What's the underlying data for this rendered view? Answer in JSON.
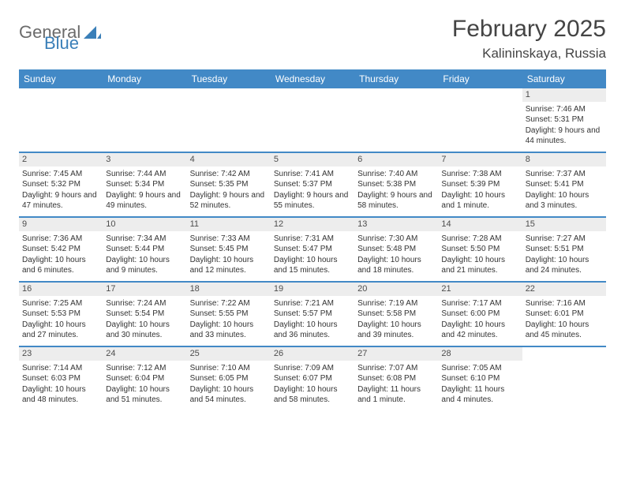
{
  "logo": {
    "general": "General",
    "blue": "Blue"
  },
  "title": "February 2025",
  "location": "Kalininskaya, Russia",
  "day_headers": [
    "Sunday",
    "Monday",
    "Tuesday",
    "Wednesday",
    "Thursday",
    "Friday",
    "Saturday"
  ],
  "colors": {
    "header_bar": "#4289c6",
    "day_num_bg": "#ededed",
    "divider": "#4289c6",
    "logo_gray": "#6b6b6b",
    "logo_blue": "#3a7fb8"
  },
  "weeks": [
    [
      {
        "n": "",
        "empty": true
      },
      {
        "n": "",
        "empty": true
      },
      {
        "n": "",
        "empty": true
      },
      {
        "n": "",
        "empty": true
      },
      {
        "n": "",
        "empty": true
      },
      {
        "n": "",
        "empty": true
      },
      {
        "n": "1",
        "sr": "Sunrise: 7:46 AM",
        "ss": "Sunset: 5:31 PM",
        "dl": "Daylight: 9 hours and 44 minutes."
      }
    ],
    [
      {
        "n": "2",
        "sr": "Sunrise: 7:45 AM",
        "ss": "Sunset: 5:32 PM",
        "dl": "Daylight: 9 hours and 47 minutes."
      },
      {
        "n": "3",
        "sr": "Sunrise: 7:44 AM",
        "ss": "Sunset: 5:34 PM",
        "dl": "Daylight: 9 hours and 49 minutes."
      },
      {
        "n": "4",
        "sr": "Sunrise: 7:42 AM",
        "ss": "Sunset: 5:35 PM",
        "dl": "Daylight: 9 hours and 52 minutes."
      },
      {
        "n": "5",
        "sr": "Sunrise: 7:41 AM",
        "ss": "Sunset: 5:37 PM",
        "dl": "Daylight: 9 hours and 55 minutes."
      },
      {
        "n": "6",
        "sr": "Sunrise: 7:40 AM",
        "ss": "Sunset: 5:38 PM",
        "dl": "Daylight: 9 hours and 58 minutes."
      },
      {
        "n": "7",
        "sr": "Sunrise: 7:38 AM",
        "ss": "Sunset: 5:39 PM",
        "dl": "Daylight: 10 hours and 1 minute."
      },
      {
        "n": "8",
        "sr": "Sunrise: 7:37 AM",
        "ss": "Sunset: 5:41 PM",
        "dl": "Daylight: 10 hours and 3 minutes."
      }
    ],
    [
      {
        "n": "9",
        "sr": "Sunrise: 7:36 AM",
        "ss": "Sunset: 5:42 PM",
        "dl": "Daylight: 10 hours and 6 minutes."
      },
      {
        "n": "10",
        "sr": "Sunrise: 7:34 AM",
        "ss": "Sunset: 5:44 PM",
        "dl": "Daylight: 10 hours and 9 minutes."
      },
      {
        "n": "11",
        "sr": "Sunrise: 7:33 AM",
        "ss": "Sunset: 5:45 PM",
        "dl": "Daylight: 10 hours and 12 minutes."
      },
      {
        "n": "12",
        "sr": "Sunrise: 7:31 AM",
        "ss": "Sunset: 5:47 PM",
        "dl": "Daylight: 10 hours and 15 minutes."
      },
      {
        "n": "13",
        "sr": "Sunrise: 7:30 AM",
        "ss": "Sunset: 5:48 PM",
        "dl": "Daylight: 10 hours and 18 minutes."
      },
      {
        "n": "14",
        "sr": "Sunrise: 7:28 AM",
        "ss": "Sunset: 5:50 PM",
        "dl": "Daylight: 10 hours and 21 minutes."
      },
      {
        "n": "15",
        "sr": "Sunrise: 7:27 AM",
        "ss": "Sunset: 5:51 PM",
        "dl": "Daylight: 10 hours and 24 minutes."
      }
    ],
    [
      {
        "n": "16",
        "sr": "Sunrise: 7:25 AM",
        "ss": "Sunset: 5:53 PM",
        "dl": "Daylight: 10 hours and 27 minutes."
      },
      {
        "n": "17",
        "sr": "Sunrise: 7:24 AM",
        "ss": "Sunset: 5:54 PM",
        "dl": "Daylight: 10 hours and 30 minutes."
      },
      {
        "n": "18",
        "sr": "Sunrise: 7:22 AM",
        "ss": "Sunset: 5:55 PM",
        "dl": "Daylight: 10 hours and 33 minutes."
      },
      {
        "n": "19",
        "sr": "Sunrise: 7:21 AM",
        "ss": "Sunset: 5:57 PM",
        "dl": "Daylight: 10 hours and 36 minutes."
      },
      {
        "n": "20",
        "sr": "Sunrise: 7:19 AM",
        "ss": "Sunset: 5:58 PM",
        "dl": "Daylight: 10 hours and 39 minutes."
      },
      {
        "n": "21",
        "sr": "Sunrise: 7:17 AM",
        "ss": "Sunset: 6:00 PM",
        "dl": "Daylight: 10 hours and 42 minutes."
      },
      {
        "n": "22",
        "sr": "Sunrise: 7:16 AM",
        "ss": "Sunset: 6:01 PM",
        "dl": "Daylight: 10 hours and 45 minutes."
      }
    ],
    [
      {
        "n": "23",
        "sr": "Sunrise: 7:14 AM",
        "ss": "Sunset: 6:03 PM",
        "dl": "Daylight: 10 hours and 48 minutes."
      },
      {
        "n": "24",
        "sr": "Sunrise: 7:12 AM",
        "ss": "Sunset: 6:04 PM",
        "dl": "Daylight: 10 hours and 51 minutes."
      },
      {
        "n": "25",
        "sr": "Sunrise: 7:10 AM",
        "ss": "Sunset: 6:05 PM",
        "dl": "Daylight: 10 hours and 54 minutes."
      },
      {
        "n": "26",
        "sr": "Sunrise: 7:09 AM",
        "ss": "Sunset: 6:07 PM",
        "dl": "Daylight: 10 hours and 58 minutes."
      },
      {
        "n": "27",
        "sr": "Sunrise: 7:07 AM",
        "ss": "Sunset: 6:08 PM",
        "dl": "Daylight: 11 hours and 1 minute."
      },
      {
        "n": "28",
        "sr": "Sunrise: 7:05 AM",
        "ss": "Sunset: 6:10 PM",
        "dl": "Daylight: 11 hours and 4 minutes."
      },
      {
        "n": "",
        "empty": true
      }
    ]
  ]
}
